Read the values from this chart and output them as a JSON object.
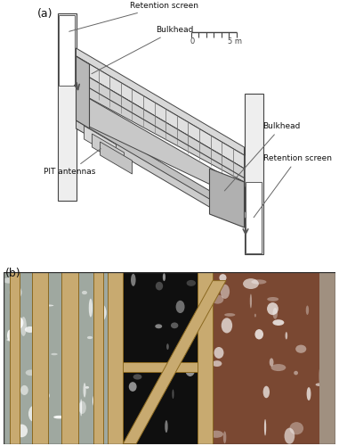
{
  "fig_width": 3.81,
  "fig_height": 5.0,
  "dpi": 100,
  "bg_color": "#ffffff",
  "panel_a_label": "(a)",
  "panel_b_label": "(b)",
  "annotations": {
    "retention_screen_top": "Retention screen",
    "bulkhead_top": "Bulkhead",
    "bulkhead_right": "Bulkhead",
    "retention_screen_right": "Retention screen",
    "pit_antennas": "PIT antennas",
    "scale_0": "0",
    "scale_5m": "5 m"
  },
  "line_color": "#444444",
  "photo_colors": {
    "left_water": "#b0b8c0",
    "center_dark": "#151515",
    "right_water": "#7a4a32",
    "wood_color": "#c0a060",
    "border": "#555555"
  }
}
